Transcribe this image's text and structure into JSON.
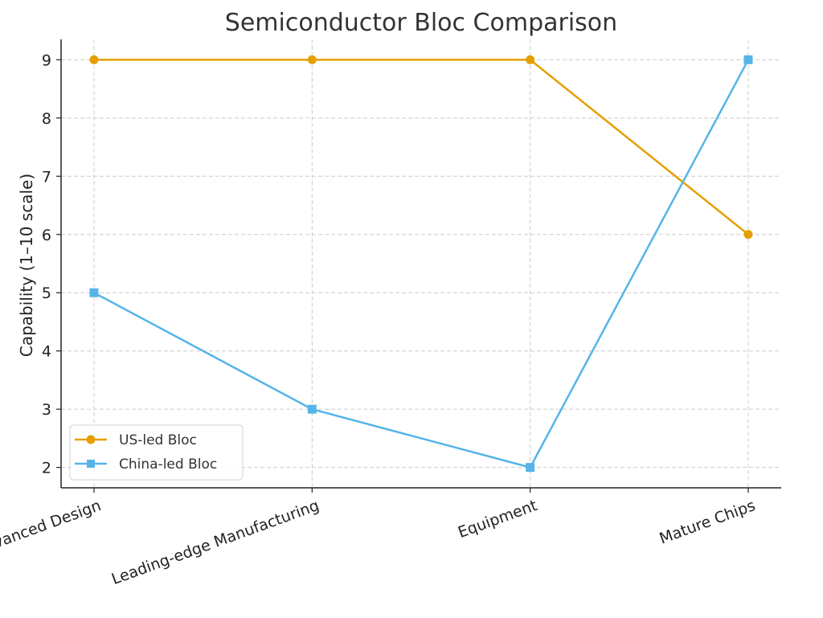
{
  "chart_data": {
    "type": "line",
    "title": "Semiconductor Bloc Comparison",
    "xlabel": "",
    "ylabel": "Capability (1–10 scale)",
    "categories": [
      "Advanced Design",
      "Leading-edge Manufacturing",
      "Equipment",
      "Mature Chips"
    ],
    "ylim": [
      1.65,
      9.35
    ],
    "yticks": [
      2,
      3,
      4,
      5,
      6,
      7,
      8,
      9
    ],
    "grid": true,
    "legend_position": "lower-left",
    "series": [
      {
        "name": "US-led Bloc",
        "values": [
          9,
          9,
          9,
          6
        ],
        "color": "#E69F00",
        "marker": "circle"
      },
      {
        "name": "China-led Bloc",
        "values": [
          5,
          3,
          2,
          9
        ],
        "color": "#56B4E9",
        "marker": "square"
      }
    ]
  }
}
